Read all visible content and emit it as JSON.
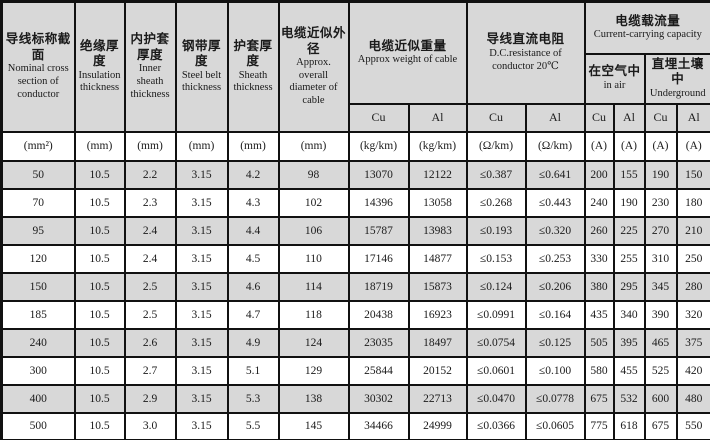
{
  "table": {
    "title_semantic": "cable-specification-table",
    "colors": {
      "header_fill": "#d8d8d8",
      "row_alt_fill": "#d8d8d8",
      "border": "#111111",
      "text": "#1a1a1a"
    },
    "headers": [
      {
        "zh": "导线标称截面",
        "en": "Nominal cross section of conductor"
      },
      {
        "zh": "绝缘厚度",
        "en": "Insulation thickness"
      },
      {
        "zh": "内护套厚度",
        "en": "Inner sheath thickness"
      },
      {
        "zh": "钢带厚度",
        "en": "Steel belt thickness"
      },
      {
        "zh": "护套厚度",
        "en": "Sheath thickness"
      },
      {
        "zh": "电缆近似外径",
        "en": "Approx. overall diameter of cable"
      },
      {
        "zh": "电缆近似重量",
        "en": "Approx weight of cable"
      },
      {
        "zh": "导线直流电阻",
        "en": "D.C.resistance of conductor 20℃"
      },
      {
        "zh": "电缆载流量",
        "en": "Current-carrying capacity"
      },
      {
        "zh": "在空气中",
        "en": "in air"
      },
      {
        "zh": "直埋土壤中",
        "en": "Underground"
      }
    ],
    "sub_headers": [
      "Cu",
      "Al",
      "Cu",
      "Al",
      "Cu",
      "Al",
      "Cu",
      "Al"
    ],
    "units": [
      "(mm²)",
      "(mm)",
      "(mm)",
      "(mm)",
      "(mm)",
      "(mm)",
      "(kg/km)",
      "(kg/km)",
      "(Ω/km)",
      "(Ω/km)",
      "(A)",
      "(A)",
      "(A)",
      "(A)"
    ],
    "rows": [
      [
        "50",
        "10.5",
        "2.2",
        "3.15",
        "4.2",
        "98",
        "13070",
        "12122",
        "≤0.387",
        "≤0.641",
        "200",
        "155",
        "190",
        "150"
      ],
      [
        "70",
        "10.5",
        "2.3",
        "3.15",
        "4.3",
        "102",
        "14396",
        "13058",
        "≤0.268",
        "≤0.443",
        "240",
        "190",
        "230",
        "180"
      ],
      [
        "95",
        "10.5",
        "2.4",
        "3.15",
        "4.4",
        "106",
        "15787",
        "13983",
        "≤0.193",
        "≤0.320",
        "260",
        "225",
        "270",
        "210"
      ],
      [
        "120",
        "10.5",
        "2.4",
        "3.15",
        "4.5",
        "110",
        "17146",
        "14877",
        "≤0.153",
        "≤0.253",
        "330",
        "255",
        "310",
        "250"
      ],
      [
        "150",
        "10.5",
        "2.5",
        "3.15",
        "4.6",
        "114",
        "18719",
        "15873",
        "≤0.124",
        "≤0.206",
        "380",
        "295",
        "345",
        "280"
      ],
      [
        "185",
        "10.5",
        "2.5",
        "3.15",
        "4.7",
        "118",
        "20438",
        "16923",
        "≤0.0991",
        "≤0.164",
        "435",
        "340",
        "390",
        "320"
      ],
      [
        "240",
        "10.5",
        "2.6",
        "3.15",
        "4.9",
        "124",
        "23035",
        "18497",
        "≤0.0754",
        "≤0.125",
        "505",
        "395",
        "465",
        "375"
      ],
      [
        "300",
        "10.5",
        "2.7",
        "3.15",
        "5.1",
        "129",
        "25844",
        "20152",
        "≤0.0601",
        "≤0.100",
        "580",
        "455",
        "525",
        "420"
      ],
      [
        "400",
        "10.5",
        "2.9",
        "3.15",
        "5.3",
        "138",
        "30302",
        "22713",
        "≤0.0470",
        "≤0.0778",
        "675",
        "532",
        "600",
        "480"
      ],
      [
        "500",
        "10.5",
        "3.0",
        "3.15",
        "5.5",
        "145",
        "34466",
        "24999",
        "≤0.0366",
        "≤0.0605",
        "775",
        "618",
        "675",
        "550"
      ]
    ]
  }
}
